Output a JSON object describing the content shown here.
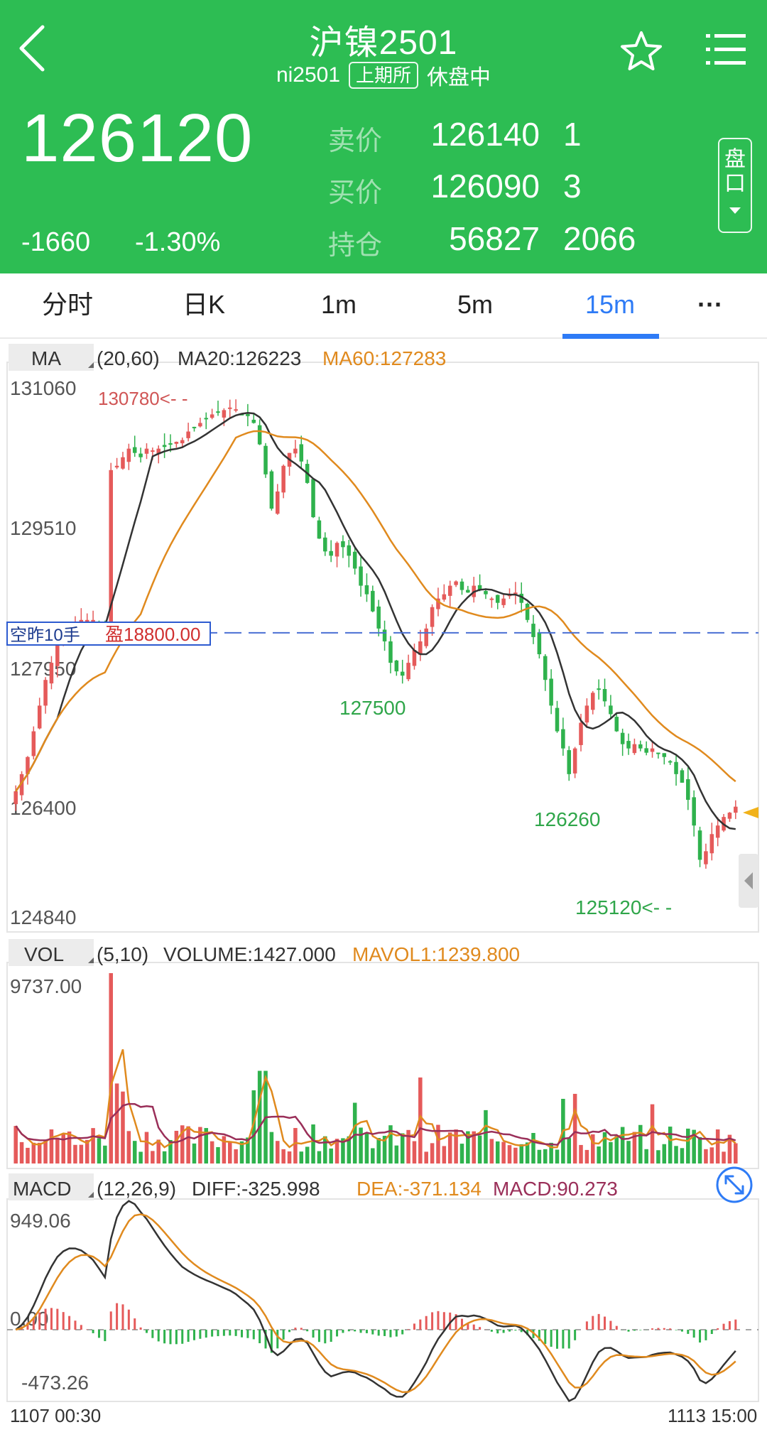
{
  "header": {
    "title": "沪镍2501",
    "code": "ni2501",
    "exchange": "上期所",
    "status": "休盘中",
    "last_price": "126120",
    "change": "-1660",
    "change_pct": "-1.30%",
    "quote": {
      "sell_label": "卖价",
      "sell_price": "126140",
      "sell_vol": "1",
      "buy_label": "买价",
      "buy_price": "126090",
      "buy_vol": "3",
      "oi_label": "持仓",
      "oi": "56827",
      "oi_change": "2066"
    },
    "pankou_label": "盘口",
    "colors": {
      "header_bg": "#2dbd53",
      "up": "#e55a5a",
      "down": "#2fb24d"
    }
  },
  "tabs": [
    {
      "label": "分时"
    },
    {
      "label": "日K"
    },
    {
      "label": "1m"
    },
    {
      "label": "5m"
    },
    {
      "label": "15m",
      "active": true
    },
    {
      "label": "···"
    }
  ],
  "kline": {
    "indicator": "MA",
    "params": "(20,60)",
    "ma20_label": "MA20:126223",
    "ma60_label": "MA60:127283",
    "axis_labels": [
      "131060",
      "129510",
      "127950",
      "126400",
      "124840"
    ],
    "position": {
      "label": "空昨10手",
      "profit": "盈18800.00",
      "price": 128150
    },
    "annotations": {
      "high": "130780<- -",
      "low1": "127500",
      "low2": "126260",
      "low3": "125120<- -"
    },
    "y_range": [
      124840,
      131060
    ]
  },
  "volume": {
    "indicator": "VOL",
    "params": "(5,10)",
    "volume_label": "VOLUME:1427.000",
    "mavol_label": "MAVOL1:1239.800",
    "max_label": "9737.00"
  },
  "macd": {
    "indicator": "MACD",
    "params": "(12,26,9)",
    "diff_label": "DIFF:-325.998",
    "dea_label": "DEA:-371.134",
    "macd_label": "MACD:90.273",
    "axis_labels": [
      "949.06",
      "0.00",
      "-473.26"
    ]
  },
  "time_axis": {
    "start": "1107 00:30",
    "end": "1113 15:00"
  },
  "chart_data": {
    "type": "candlestick",
    "price_closes": [
      126300,
      126500,
      126700,
      127000,
      127300,
      127600,
      127800,
      128000,
      128100,
      128200,
      128250,
      128300,
      128300,
      128300,
      128200,
      128150,
      130050,
      130100,
      130200,
      130300,
      130250,
      130200,
      130300,
      130280,
      130300,
      130320,
      130350,
      130380,
      130400,
      130500,
      130550,
      130600,
      130650,
      130700,
      130720,
      130750,
      130780,
      130760,
      130700,
      130680,
      130600,
      130350,
      130000,
      129600,
      129800,
      130100,
      130250,
      130300,
      130150,
      129900,
      129500,
      129250,
      129100,
      129050,
      129200,
      129150,
      129050,
      128900,
      128700,
      128600,
      128400,
      128200,
      128050,
      127800,
      127700,
      127650,
      127800,
      127950,
      128050,
      128200,
      128450,
      128550,
      128600,
      128700,
      128750,
      128650,
      128620,
      128700,
      128650,
      128600,
      128550,
      128500,
      128550,
      128600,
      128620,
      128500,
      128300,
      128100,
      127900,
      127600,
      127300,
      127000,
      126800,
      126500,
      126800,
      127100,
      127300,
      127450,
      127500,
      127350,
      127200,
      127000,
      126850,
      126800,
      126850,
      126800,
      126750,
      126800,
      126750,
      126700,
      126650,
      126500,
      126400,
      126200,
      125900,
      125500,
      125600,
      125800,
      125900,
      126000,
      126050,
      126120
    ],
    "ma20_note": "MA20 line on price panel",
    "ma60_note": "MA60 line on price panel"
  }
}
